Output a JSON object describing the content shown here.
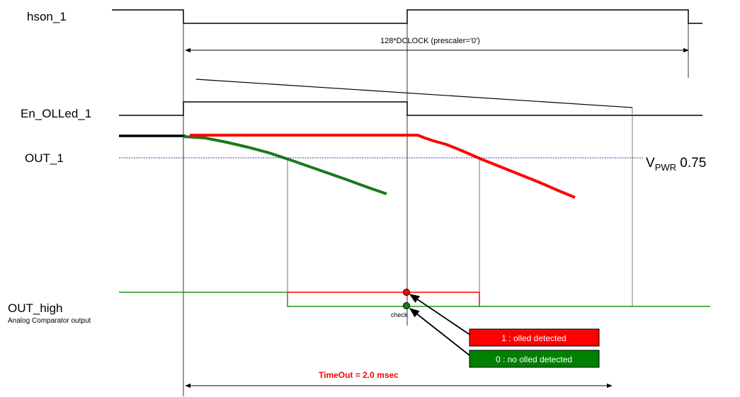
{
  "signals": {
    "hson": "hson_1",
    "en_olled": "En_OLLed_1",
    "out": "OUT_1",
    "out_high": "OUT_high",
    "out_high_sub": "Analog Comparator output"
  },
  "annotations": {
    "clock": "128*DCLOCK (prescaler='0')",
    "vpwr_main": "V",
    "vpwr_sub": "PWR",
    "vpwr_value": " 0.75",
    "check": "check",
    "timeout": "TimeOut = 2.0 msec"
  },
  "legend": {
    "detected": "1 : olled detected",
    "not_detected": "0 : no olled detected",
    "detected_color": "#ff0000",
    "not_detected_color": "#008000"
  },
  "colors": {
    "trace": "#000000",
    "red_curve": "#ff0000",
    "green_curve": "#1a7a1a",
    "threshold": "#3333aa",
    "guides": "#555555"
  }
}
